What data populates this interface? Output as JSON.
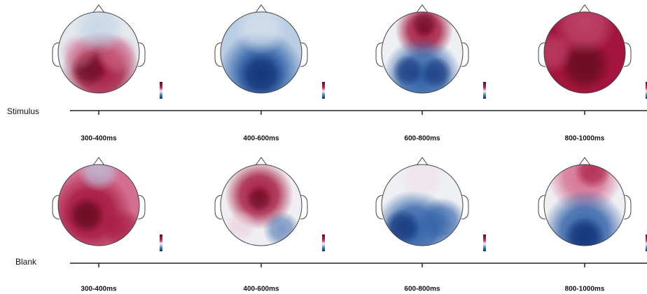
{
  "rows": [
    {
      "label": "Stimulus",
      "times": [
        "300-400ms",
        "400-600ms",
        "600-800ms",
        "800-1000ms"
      ]
    },
    {
      "label": "Blank",
      "times": [
        "300-400ms",
        "400-600ms",
        "600-800ms",
        "800-1000ms"
      ]
    }
  ]
}
